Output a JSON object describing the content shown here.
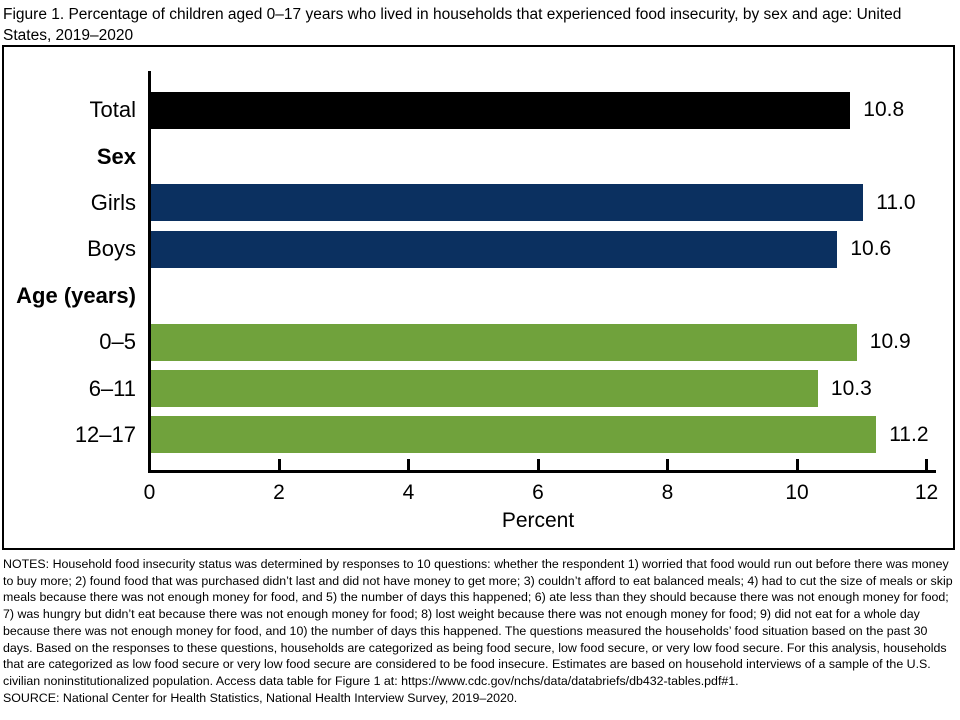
{
  "title": "Figure 1. Percentage of children aged 0–17 years who lived in households that experienced food insecurity, by sex and age: United States, 2019–2020",
  "chart_data": {
    "type": "bar",
    "orientation": "horizontal",
    "title": "Figure 1. Percentage of children aged 0–17 years who lived in households that experienced food insecurity, by sex and age: United States, 2019–2020",
    "xlabel": "Percent",
    "ylabel": "",
    "xlim": [
      0,
      12
    ],
    "xticks": [
      0,
      2,
      4,
      6,
      8,
      10,
      12
    ],
    "grid": false,
    "legend": false,
    "value_labels_shown": true,
    "rows": [
      {
        "label": "Total",
        "header": false,
        "value": 10.8,
        "value_label": "10.8",
        "color": "#000000"
      },
      {
        "label": "Sex",
        "header": true
      },
      {
        "label": "Girls",
        "header": false,
        "value": 11.0,
        "value_label": "11.0",
        "color": "#0b3060"
      },
      {
        "label": "Boys",
        "header": false,
        "value": 10.6,
        "value_label": "10.6",
        "color": "#0b3060"
      },
      {
        "label": "Age (years)",
        "header": true
      },
      {
        "label": "0–5",
        "header": false,
        "value": 10.9,
        "value_label": "10.9",
        "color": "#70a23c"
      },
      {
        "label": "6–11",
        "header": false,
        "value": 10.3,
        "value_label": "10.3",
        "color": "#70a23c"
      },
      {
        "label": "12–17",
        "header": false,
        "value": 11.2,
        "value_label": "11.2",
        "color": "#70a23c"
      }
    ],
    "colors": {
      "total": "#000000",
      "sex": "#0b3060",
      "age": "#70a23c",
      "axis": "#000000"
    }
  },
  "notes": "NOTES: Household food insecurity status was determined by responses to 10 questions: whether the respondent 1) worried that food would run out before there was money to buy more; 2) found food that was purchased didn’t last and did not have money to get more; 3) couldn’t afford to eat balanced meals; 4) had to cut the size of meals or skip meals because there was not enough money for food, and 5) the number of days this happened; 6) ate less than they should because there was not enough money for food; 7) was hungry but didn’t eat because there was not enough money for food; 8) lost weight because there was not enough money for food; 9) did not eat for a whole day because there was not enough money for food, and 10) the number of days this happened. The questions measured the households’ food situation based on the past 30 days. Based on the responses to these questions, households are categorized as being food secure, low food secure, or very low food secure. For this analysis, households that are categorized as low food secure or very low food secure are considered to be food insecure. Estimates are based on household interviews of a sample of the U.S. civilian noninstitutionalized population. Access data table for Figure 1 at: https://www.cdc.gov/nchs/data/databriefs/db432-tables.pdf#1.",
  "source": "SOURCE: National Center for Health Statistics, National Health Interview Survey, 2019–2020."
}
